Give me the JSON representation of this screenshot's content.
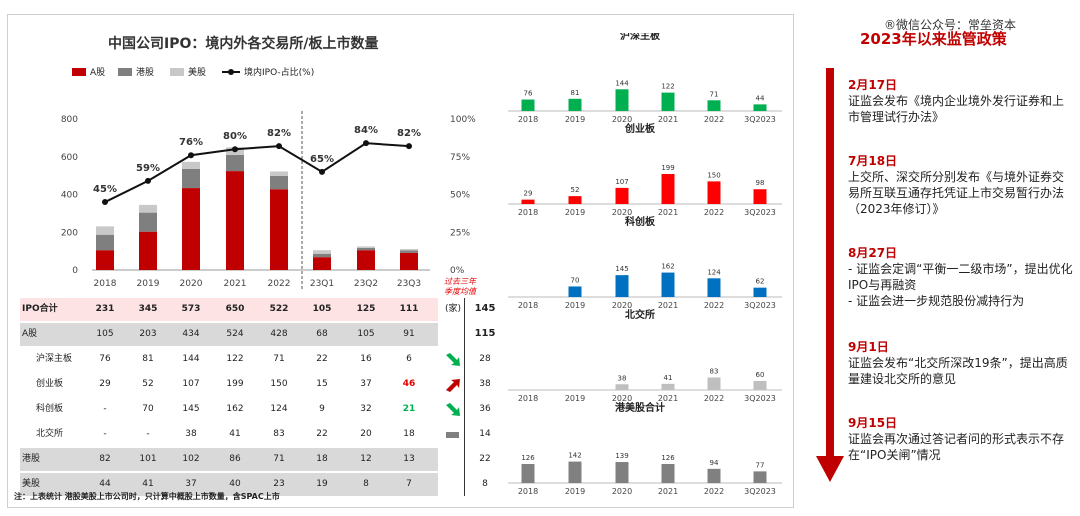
{
  "watermark": "®微信公众号：常垒资本",
  "left_chart": {
    "title": "中国公司IPO：境内外各交易所/板上市数量",
    "legend": [
      {
        "name": "A股",
        "color": "#c00000",
        "kind": "bar"
      },
      {
        "name": "港股",
        "color": "#7f7f7f",
        "kind": "bar"
      },
      {
        "name": "美股",
        "color": "#c8c8c8",
        "kind": "bar"
      },
      {
        "name": "境内IPO-占比(%)",
        "color": "#111111",
        "kind": "line"
      }
    ],
    "y_left_ticks": [
      "800",
      "600",
      "400",
      "200",
      "0"
    ],
    "y_right_ticks": [
      "100%",
      "75%",
      "50%",
      "25%",
      "0%"
    ]
  },
  "chart_data": [
    {
      "type": "bar",
      "stacked": true,
      "title": "中国公司IPO：境内外各交易所/板上市数量",
      "categories": [
        "2018",
        "2019",
        "2020",
        "2021",
        "2022",
        "23Q1",
        "23Q2",
        "23Q3"
      ],
      "series": [
        {
          "name": "A股",
          "values": [
            105,
            203,
            434,
            524,
            428,
            68,
            105,
            91
          ],
          "color": "#c00000"
        },
        {
          "name": "港股",
          "values": [
            82,
            101,
            102,
            86,
            71,
            18,
            12,
            13
          ],
          "color": "#7f7f7f"
        },
        {
          "name": "美股",
          "values": [
            44,
            41,
            37,
            40,
            23,
            19,
            8,
            7
          ],
          "color": "#c8c8c8"
        }
      ],
      "line": {
        "name": "境内IPO-占比(%)",
        "values": [
          45,
          59,
          76,
          80,
          82,
          65,
          84,
          82
        ],
        "labels": [
          "45%",
          "59%",
          "76%",
          "80%",
          "82%",
          "65%",
          "84%",
          "82%"
        ]
      },
      "ylim": [
        0,
        800
      ],
      "y2lim": [
        0,
        100
      ]
    },
    {
      "type": "bar",
      "title": "沪深主板",
      "categories": [
        "2018",
        "2019",
        "2020",
        "2021",
        "2022",
        "3Q2023"
      ],
      "values": [
        76,
        81,
        144,
        122,
        71,
        44
      ],
      "color": "#00b050"
    },
    {
      "type": "bar",
      "title": "创业板",
      "categories": [
        "2018",
        "2019",
        "2020",
        "2021",
        "2022",
        "3Q2023"
      ],
      "values": [
        29,
        52,
        107,
        199,
        150,
        98
      ],
      "color": "#ff0000"
    },
    {
      "type": "bar",
      "title": "科创板",
      "categories": [
        "2018",
        "2019",
        "2020",
        "2021",
        "2022",
        "3Q2023"
      ],
      "values": [
        null,
        70,
        145,
        162,
        124,
        62
      ],
      "color": "#0070c0"
    },
    {
      "type": "bar",
      "title": "北交所",
      "categories": [
        "2018",
        "2019",
        "2020",
        "2021",
        "2022",
        "3Q2023"
      ],
      "values": [
        null,
        null,
        38,
        41,
        83,
        60
      ],
      "color": "#bfbfbf"
    },
    {
      "type": "bar",
      "title": "港美股合计",
      "categories": [
        "2018",
        "2019",
        "2020",
        "2021",
        "2022",
        "3Q2023"
      ],
      "values": [
        126,
        142,
        139,
        126,
        94,
        77
      ],
      "color": "#808080"
    }
  ],
  "table": {
    "rows": [
      {
        "label": "IPO合计",
        "values": [
          "231",
          "345",
          "573",
          "650",
          "522",
          "105",
          "125",
          "111"
        ],
        "bg": "#fde3e3",
        "bold": true
      },
      {
        "label": "A股",
        "values": [
          "105",
          "203",
          "434",
          "524",
          "428",
          "68",
          "105",
          "91"
        ],
        "bg": "#d9d9d9"
      },
      {
        "label": "沪深主板",
        "values": [
          "76",
          "81",
          "144",
          "122",
          "71",
          "22",
          "16",
          "6"
        ],
        "bg": "#ffffff"
      },
      {
        "label": "创业板",
        "values": [
          "29",
          "52",
          "107",
          "199",
          "150",
          "15",
          "37",
          "46"
        ],
        "bg": "#ffffff",
        "highlight_color": "#e60000"
      },
      {
        "label": "科创板",
        "values": [
          "-",
          "70",
          "145",
          "162",
          "124",
          "9",
          "32",
          "21"
        ],
        "bg": "#ffffff",
        "highlight_color": "#00b050"
      },
      {
        "label": "北交所",
        "values": [
          "-",
          "-",
          "38",
          "41",
          "83",
          "22",
          "20",
          "18"
        ],
        "bg": "#ffffff"
      },
      {
        "label": "港股",
        "values": [
          "82",
          "101",
          "102",
          "86",
          "71",
          "18",
          "12",
          "13"
        ],
        "bg": "#d9d9d9"
      },
      {
        "label": "美股",
        "values": [
          "44",
          "41",
          "37",
          "40",
          "23",
          "19",
          "8",
          "7"
        ],
        "bg": "#d9d9d9"
      }
    ],
    "avg_header": "过去三年\n季度均值",
    "unit": "(家)",
    "avg_values": [
      "145",
      "115",
      "28",
      "38",
      "36",
      "14",
      "22",
      "8"
    ],
    "trends": [
      "",
      "",
      "down",
      "up",
      "down",
      "flat",
      "",
      ""
    ],
    "note": "注：上表统计 港股美股上市公司时，只计算中概股上市数量，含SPAC上市"
  },
  "policy": {
    "title": "2023年以来监管政策",
    "items": [
      {
        "date": "2月17日",
        "text": "证监会发布《境内企业境外发行证券和上市管理试行办法》"
      },
      {
        "date": "7月18日",
        "text": "上交所、深交所分别发布《与境外证券交易所互联互通存托凭证上市交易暂行办法（2023年修订）》"
      },
      {
        "date": "8月27日",
        "text": "-  证监会定调“平衡一二级市场”，提出优化IPO与再融资\n-  证监会进一步规范股份减持行为"
      },
      {
        "date": "9月1日",
        "text": "证监会发布“北交所深改19条”，提出高质量建设北交所的意见"
      },
      {
        "date": "9月15日",
        "text": "证监会再次通过答记者问的形式表示不存在“IPO关闸”情况"
      }
    ]
  }
}
